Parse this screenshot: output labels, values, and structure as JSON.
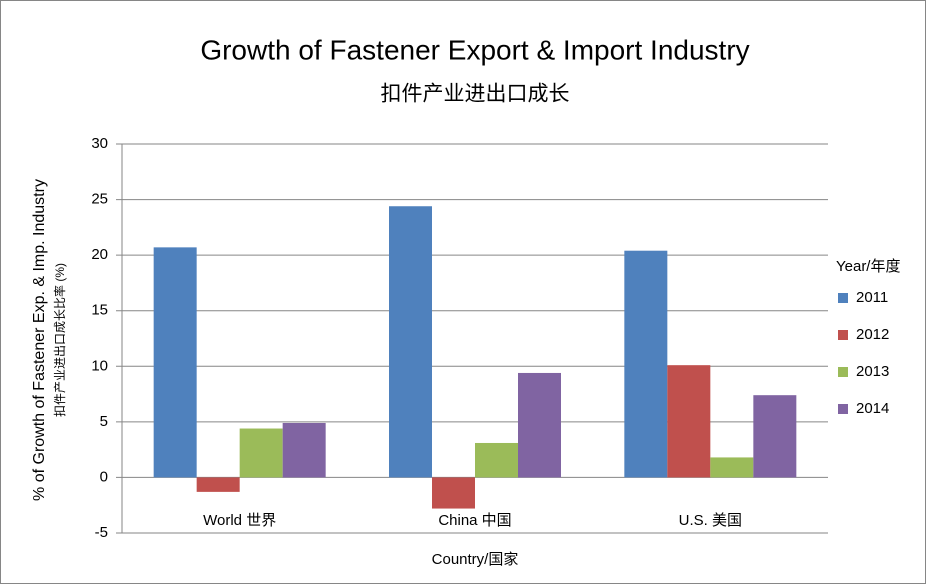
{
  "chart_data": {
    "type": "bar",
    "title": "Growth of Fastener Export & Import Industry",
    "subtitle": "扣件产业进出口成长",
    "x_label": "Country/国家",
    "y_label": [
      "% of Growth of Fastener Exp. & Imp. Industry",
      "扣件产业进出口成长比率 (%)"
    ],
    "legend_title": "Year/年度",
    "legend": "right",
    "grid": true,
    "categories": [
      "World 世界",
      "China 中国",
      "U.S. 美国"
    ],
    "series": [
      {
        "name": "2011",
        "color": "#4f81bd",
        "values": [
          20.7,
          24.4,
          20.4
        ]
      },
      {
        "name": "2012",
        "color": "#c0504d",
        "values": [
          -1.3,
          -2.8,
          10.1
        ]
      },
      {
        "name": "2013",
        "color": "#9bbb59",
        "values": [
          4.4,
          3.1,
          1.8
        ]
      },
      {
        "name": "2014",
        "color": "#8064a2",
        "values": [
          4.9,
          9.4,
          7.4
        ]
      }
    ],
    "ylim": [
      -5,
      30
    ],
    "yticks": [
      -5,
      0,
      5,
      10,
      15,
      20,
      25,
      30
    ]
  }
}
